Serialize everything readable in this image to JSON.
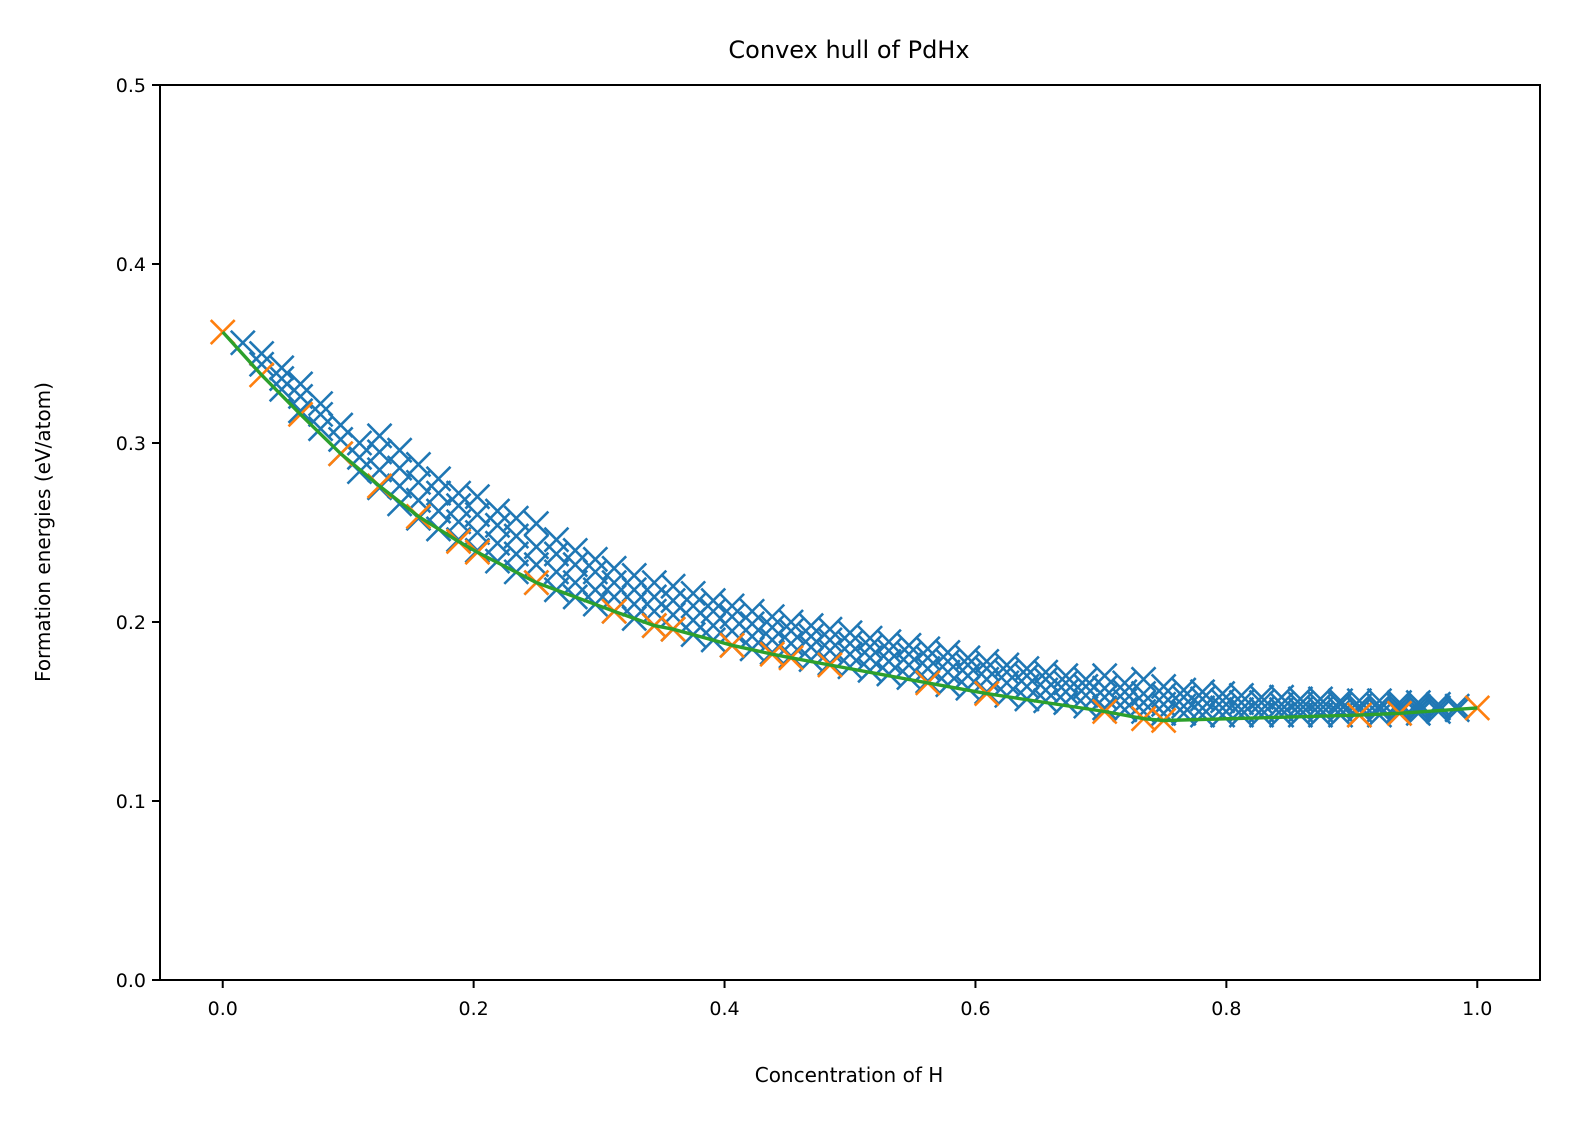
{
  "chart_data": {
    "type": "scatter",
    "title": "Convex hull of PdHx",
    "xlabel": "Concentration of H",
    "ylabel": "Formation energies (eV/atom)",
    "xlim": [
      -0.05,
      1.05
    ],
    "ylim": [
      0.0,
      0.5
    ],
    "xticks": [
      "0.0",
      "0.2",
      "0.4",
      "0.6",
      "0.8",
      "1.0"
    ],
    "yticks": [
      "0.0",
      "0.1",
      "0.2",
      "0.3",
      "0.4",
      "0.5"
    ],
    "grid": false,
    "legend": "none",
    "colors": {
      "structures": "#1f77b4",
      "hull_points": "#ff7f0e",
      "hull_line": "#2ca02c"
    },
    "series": [
      {
        "marker": "x",
        "color": "#1f77b4",
        "points": [
          [
            0.016,
            0.356
          ],
          [
            0.031,
            0.344
          ],
          [
            0.031,
            0.35
          ],
          [
            0.047,
            0.33
          ],
          [
            0.047,
            0.336
          ],
          [
            0.047,
            0.342
          ],
          [
            0.062,
            0.318
          ],
          [
            0.062,
            0.326
          ],
          [
            0.062,
            0.333
          ],
          [
            0.078,
            0.308
          ],
          [
            0.078,
            0.316
          ],
          [
            0.078,
            0.322
          ],
          [
            0.094,
            0.294
          ],
          [
            0.094,
            0.302
          ],
          [
            0.094,
            0.31
          ],
          [
            0.109,
            0.284
          ],
          [
            0.109,
            0.292
          ],
          [
            0.109,
            0.3
          ],
          [
            0.125,
            0.275
          ],
          [
            0.125,
            0.285
          ],
          [
            0.125,
            0.295
          ],
          [
            0.125,
            0.304
          ],
          [
            0.141,
            0.266
          ],
          [
            0.141,
            0.276
          ],
          [
            0.141,
            0.286
          ],
          [
            0.141,
            0.296
          ],
          [
            0.156,
            0.258
          ],
          [
            0.156,
            0.268
          ],
          [
            0.156,
            0.278
          ],
          [
            0.156,
            0.288
          ],
          [
            0.172,
            0.252
          ],
          [
            0.172,
            0.262
          ],
          [
            0.172,
            0.272
          ],
          [
            0.172,
            0.28
          ],
          [
            0.188,
            0.246
          ],
          [
            0.188,
            0.256
          ],
          [
            0.188,
            0.265
          ],
          [
            0.188,
            0.272
          ],
          [
            0.203,
            0.24
          ],
          [
            0.203,
            0.25
          ],
          [
            0.203,
            0.26
          ],
          [
            0.203,
            0.27
          ],
          [
            0.219,
            0.234
          ],
          [
            0.219,
            0.244
          ],
          [
            0.219,
            0.254
          ],
          [
            0.219,
            0.262
          ],
          [
            0.234,
            0.228
          ],
          [
            0.234,
            0.238
          ],
          [
            0.234,
            0.248
          ],
          [
            0.234,
            0.258
          ],
          [
            0.25,
            0.222
          ],
          [
            0.25,
            0.232
          ],
          [
            0.25,
            0.242
          ],
          [
            0.25,
            0.255
          ],
          [
            0.266,
            0.218
          ],
          [
            0.266,
            0.228
          ],
          [
            0.266,
            0.238
          ],
          [
            0.266,
            0.246
          ],
          [
            0.281,
            0.214
          ],
          [
            0.281,
            0.222
          ],
          [
            0.281,
            0.232
          ],
          [
            0.281,
            0.24
          ],
          [
            0.297,
            0.21
          ],
          [
            0.297,
            0.218
          ],
          [
            0.297,
            0.228
          ],
          [
            0.297,
            0.235
          ],
          [
            0.312,
            0.206
          ],
          [
            0.312,
            0.214
          ],
          [
            0.312,
            0.222
          ],
          [
            0.312,
            0.23
          ],
          [
            0.328,
            0.202
          ],
          [
            0.328,
            0.21
          ],
          [
            0.328,
            0.218
          ],
          [
            0.328,
            0.226
          ],
          [
            0.344,
            0.198
          ],
          [
            0.344,
            0.206
          ],
          [
            0.344,
            0.214
          ],
          [
            0.344,
            0.222
          ],
          [
            0.359,
            0.196
          ],
          [
            0.359,
            0.204
          ],
          [
            0.359,
            0.212
          ],
          [
            0.359,
            0.22
          ],
          [
            0.375,
            0.193
          ],
          [
            0.375,
            0.201
          ],
          [
            0.375,
            0.209
          ],
          [
            0.375,
            0.216
          ],
          [
            0.391,
            0.19
          ],
          [
            0.391,
            0.198
          ],
          [
            0.391,
            0.206
          ],
          [
            0.391,
            0.212
          ],
          [
            0.406,
            0.187
          ],
          [
            0.406,
            0.195
          ],
          [
            0.406,
            0.203
          ],
          [
            0.406,
            0.209
          ],
          [
            0.422,
            0.185
          ],
          [
            0.422,
            0.192
          ],
          [
            0.422,
            0.199
          ],
          [
            0.422,
            0.206
          ],
          [
            0.438,
            0.183
          ],
          [
            0.438,
            0.19
          ],
          [
            0.438,
            0.197
          ],
          [
            0.438,
            0.203
          ],
          [
            0.453,
            0.181
          ],
          [
            0.453,
            0.188
          ],
          [
            0.453,
            0.195
          ],
          [
            0.453,
            0.2
          ],
          [
            0.469,
            0.179
          ],
          [
            0.469,
            0.186
          ],
          [
            0.469,
            0.192
          ],
          [
            0.469,
            0.198
          ],
          [
            0.484,
            0.177
          ],
          [
            0.484,
            0.184
          ],
          [
            0.484,
            0.19
          ],
          [
            0.484,
            0.196
          ],
          [
            0.5,
            0.175
          ],
          [
            0.5,
            0.182
          ],
          [
            0.5,
            0.188
          ],
          [
            0.5,
            0.194
          ],
          [
            0.516,
            0.173
          ],
          [
            0.516,
            0.18
          ],
          [
            0.516,
            0.186
          ],
          [
            0.516,
            0.191
          ],
          [
            0.531,
            0.171
          ],
          [
            0.531,
            0.178
          ],
          [
            0.531,
            0.184
          ],
          [
            0.531,
            0.189
          ],
          [
            0.547,
            0.169
          ],
          [
            0.547,
            0.176
          ],
          [
            0.547,
            0.182
          ],
          [
            0.547,
            0.187
          ],
          [
            0.562,
            0.167
          ],
          [
            0.562,
            0.174
          ],
          [
            0.562,
            0.18
          ],
          [
            0.562,
            0.185
          ],
          [
            0.578,
            0.165
          ],
          [
            0.578,
            0.172
          ],
          [
            0.578,
            0.178
          ],
          [
            0.578,
            0.183
          ],
          [
            0.594,
            0.163
          ],
          [
            0.594,
            0.17
          ],
          [
            0.594,
            0.176
          ],
          [
            0.594,
            0.18
          ],
          [
            0.609,
            0.161
          ],
          [
            0.609,
            0.168
          ],
          [
            0.609,
            0.174
          ],
          [
            0.609,
            0.178
          ],
          [
            0.625,
            0.159
          ],
          [
            0.625,
            0.166
          ],
          [
            0.625,
            0.172
          ],
          [
            0.625,
            0.176
          ],
          [
            0.641,
            0.157
          ],
          [
            0.641,
            0.164
          ],
          [
            0.641,
            0.17
          ],
          [
            0.641,
            0.174
          ],
          [
            0.656,
            0.156
          ],
          [
            0.656,
            0.162
          ],
          [
            0.656,
            0.168
          ],
          [
            0.656,
            0.172
          ],
          [
            0.672,
            0.155
          ],
          [
            0.672,
            0.161
          ],
          [
            0.672,
            0.166
          ],
          [
            0.672,
            0.17
          ],
          [
            0.688,
            0.153
          ],
          [
            0.688,
            0.159
          ],
          [
            0.688,
            0.164
          ],
          [
            0.688,
            0.168
          ],
          [
            0.703,
            0.152
          ],
          [
            0.703,
            0.158
          ],
          [
            0.703,
            0.163
          ],
          [
            0.703,
            0.17
          ],
          [
            0.719,
            0.151
          ],
          [
            0.719,
            0.156
          ],
          [
            0.719,
            0.161
          ],
          [
            0.719,
            0.166
          ],
          [
            0.734,
            0.15
          ],
          [
            0.734,
            0.155
          ],
          [
            0.734,
            0.16
          ],
          [
            0.734,
            0.168
          ],
          [
            0.75,
            0.149
          ],
          [
            0.75,
            0.154
          ],
          [
            0.75,
            0.159
          ],
          [
            0.75,
            0.164
          ],
          [
            0.766,
            0.149
          ],
          [
            0.766,
            0.153
          ],
          [
            0.766,
            0.158
          ],
          [
            0.766,
            0.162
          ],
          [
            0.781,
            0.148
          ],
          [
            0.781,
            0.152
          ],
          [
            0.781,
            0.157
          ],
          [
            0.781,
            0.161
          ],
          [
            0.797,
            0.148
          ],
          [
            0.797,
            0.152
          ],
          [
            0.797,
            0.156
          ],
          [
            0.797,
            0.16
          ],
          [
            0.812,
            0.148
          ],
          [
            0.812,
            0.151
          ],
          [
            0.812,
            0.155
          ],
          [
            0.812,
            0.159
          ],
          [
            0.828,
            0.148
          ],
          [
            0.828,
            0.151
          ],
          [
            0.828,
            0.155
          ],
          [
            0.828,
            0.158
          ],
          [
            0.844,
            0.148
          ],
          [
            0.844,
            0.151
          ],
          [
            0.844,
            0.154
          ],
          [
            0.844,
            0.158
          ],
          [
            0.859,
            0.148
          ],
          [
            0.859,
            0.151
          ],
          [
            0.859,
            0.154
          ],
          [
            0.859,
            0.157
          ],
          [
            0.875,
            0.148
          ],
          [
            0.875,
            0.151
          ],
          [
            0.875,
            0.154
          ],
          [
            0.875,
            0.157
          ],
          [
            0.891,
            0.148
          ],
          [
            0.891,
            0.151
          ],
          [
            0.891,
            0.154
          ],
          [
            0.891,
            0.156
          ],
          [
            0.906,
            0.148
          ],
          [
            0.906,
            0.151
          ],
          [
            0.906,
            0.153
          ],
          [
            0.906,
            0.156
          ],
          [
            0.922,
            0.148
          ],
          [
            0.922,
            0.151
          ],
          [
            0.922,
            0.153
          ],
          [
            0.922,
            0.156
          ],
          [
            0.938,
            0.149
          ],
          [
            0.938,
            0.151
          ],
          [
            0.938,
            0.153
          ],
          [
            0.938,
            0.155
          ],
          [
            0.953,
            0.149
          ],
          [
            0.953,
            0.151
          ],
          [
            0.953,
            0.153
          ],
          [
            0.953,
            0.155
          ],
          [
            0.969,
            0.15
          ],
          [
            0.969,
            0.152
          ],
          [
            0.969,
            0.154
          ],
          [
            0.984,
            0.151
          ],
          [
            0.984,
            0.153
          ]
        ]
      },
      {
        "marker": "x",
        "color": "#ff7f0e",
        "points": [
          [
            0.0,
            0.362
          ],
          [
            0.031,
            0.338
          ],
          [
            0.062,
            0.316
          ],
          [
            0.094,
            0.294
          ],
          [
            0.125,
            0.276
          ],
          [
            0.156,
            0.259
          ],
          [
            0.188,
            0.245
          ],
          [
            0.203,
            0.239
          ],
          [
            0.25,
            0.222
          ],
          [
            0.312,
            0.206
          ],
          [
            0.344,
            0.198
          ],
          [
            0.359,
            0.196
          ],
          [
            0.406,
            0.187
          ],
          [
            0.438,
            0.182
          ],
          [
            0.453,
            0.18
          ],
          [
            0.484,
            0.176
          ],
          [
            0.562,
            0.166
          ],
          [
            0.609,
            0.16
          ],
          [
            0.703,
            0.15
          ],
          [
            0.734,
            0.146
          ],
          [
            0.75,
            0.145
          ],
          [
            0.906,
            0.148
          ],
          [
            0.938,
            0.149
          ],
          [
            1.0,
            0.152
          ]
        ]
      },
      {
        "marker": "line",
        "color": "#2ca02c",
        "points": [
          [
            0.0,
            0.362
          ],
          [
            0.031,
            0.338
          ],
          [
            0.062,
            0.316
          ],
          [
            0.094,
            0.294
          ],
          [
            0.125,
            0.276
          ],
          [
            0.156,
            0.259
          ],
          [
            0.188,
            0.245
          ],
          [
            0.203,
            0.239
          ],
          [
            0.25,
            0.222
          ],
          [
            0.312,
            0.206
          ],
          [
            0.344,
            0.198
          ],
          [
            0.359,
            0.196
          ],
          [
            0.406,
            0.187
          ],
          [
            0.438,
            0.182
          ],
          [
            0.453,
            0.18
          ],
          [
            0.484,
            0.176
          ],
          [
            0.562,
            0.166
          ],
          [
            0.609,
            0.16
          ],
          [
            0.703,
            0.15
          ],
          [
            0.734,
            0.146
          ],
          [
            0.75,
            0.145
          ],
          [
            0.906,
            0.148
          ],
          [
            0.938,
            0.149
          ],
          [
            1.0,
            0.152
          ]
        ]
      }
    ]
  }
}
